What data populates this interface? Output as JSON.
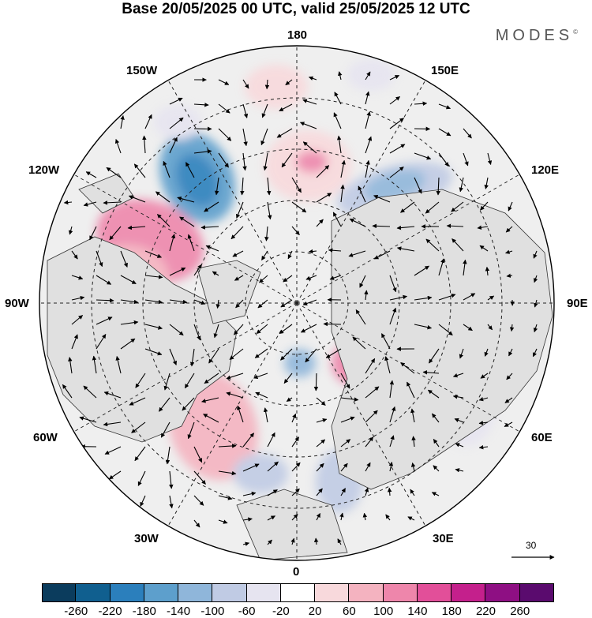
{
  "title": "Base 20/05/2025 00 UTC, valid 25/05/2025 12 UTC",
  "brand": "MODES",
  "brand_mark": "©",
  "longitude_labels": {
    "n180": "180",
    "w150": "150W",
    "e150": "150E",
    "w120": "120W",
    "e120": "120E",
    "w90": "90W",
    "e90": "90E",
    "w60": "60W",
    "e60": "60E",
    "w30": "30W",
    "e30": "30E",
    "s0": "0"
  },
  "vector_reference": {
    "label": "30"
  },
  "colorbar": {
    "ticks": [
      "-260",
      "-220",
      "-180",
      "-140",
      "-100",
      "-60",
      "-20",
      "20",
      "60",
      "100",
      "140",
      "180",
      "220",
      "260"
    ],
    "colors": [
      "#0b3c5d",
      "#105f8f",
      "#2b7fbc",
      "#5d9fcc",
      "#8fb6da",
      "#c0cbe4",
      "#e6e4f0",
      "#ffffff",
      "#f8d9dc",
      "#f4b3c0",
      "#ee86ab",
      "#e24f99",
      "#c4208c",
      "#8e0f83",
      "#5a0b6e"
    ]
  },
  "map": {
    "projection": "north polar stereographic",
    "land_color": "#e8e8e8",
    "coastline_color": "#333333",
    "grid_style": "dashed"
  }
}
